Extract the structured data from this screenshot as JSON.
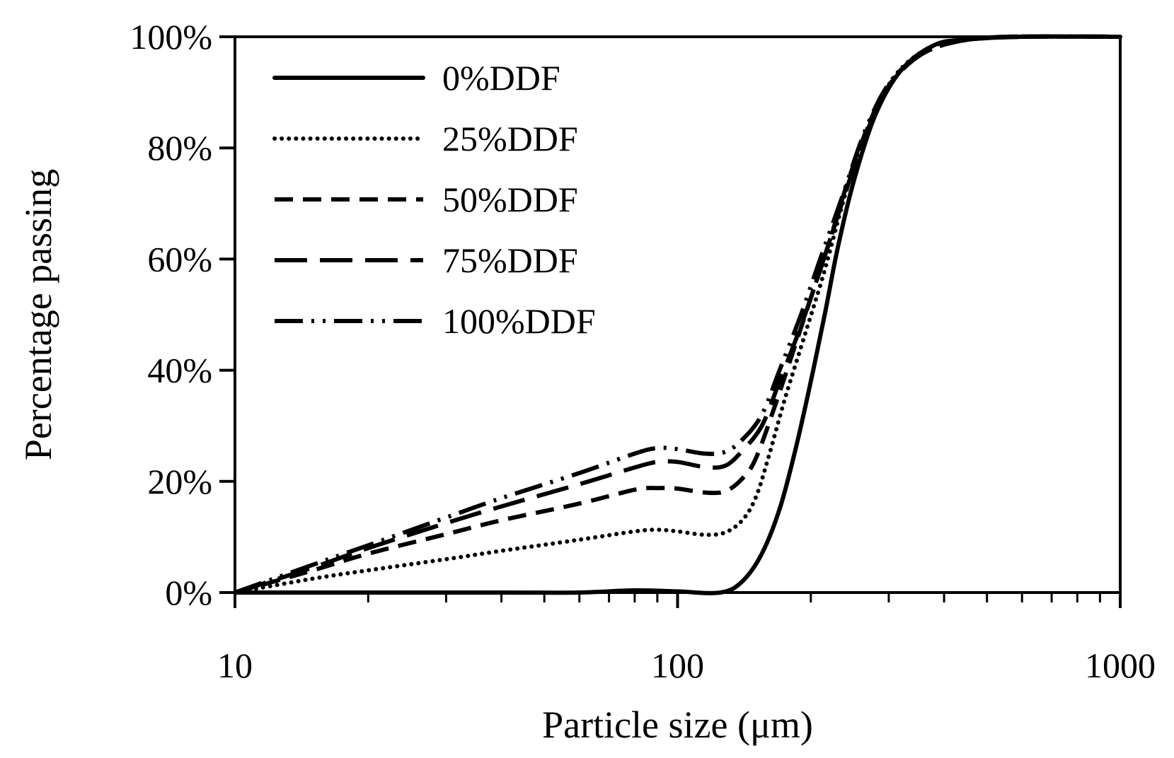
{
  "chart_data": {
    "type": "line",
    "title": "",
    "xlabel": "Particle size (μm)",
    "ylabel": "Percentage passing",
    "xscale": "log",
    "xlim": [
      10,
      1000
    ],
    "ylim": [
      0,
      100
    ],
    "x_ticks": [
      10,
      100,
      1000
    ],
    "x_tick_labels": [
      "10",
      "100",
      "1000"
    ],
    "y_ticks": [
      0,
      20,
      40,
      60,
      80,
      100
    ],
    "y_tick_labels": [
      "0%",
      "20%",
      "40%",
      "60%",
      "80%",
      "100%"
    ],
    "grid": false,
    "legend_position": "top-left",
    "series": [
      {
        "name": "0%DDF",
        "dash": "solid",
        "points": [
          [
            10,
            0
          ],
          [
            20,
            0
          ],
          [
            40,
            0
          ],
          [
            60,
            0
          ],
          [
            80,
            0.4
          ],
          [
            100,
            0.2
          ],
          [
            125,
            0
          ],
          [
            140,
            2
          ],
          [
            155,
            7
          ],
          [
            170,
            15
          ],
          [
            185,
            26
          ],
          [
            200,
            38
          ],
          [
            215,
            50
          ],
          [
            230,
            62
          ],
          [
            250,
            74
          ],
          [
            280,
            86
          ],
          [
            320,
            94
          ],
          [
            380,
            98.5
          ],
          [
            450,
            99.5
          ],
          [
            600,
            100
          ],
          [
            1000,
            100
          ]
        ]
      },
      {
        "name": "25%DDF",
        "dash": "dotted",
        "points": [
          [
            10,
            0
          ],
          [
            15,
            2.5
          ],
          [
            20,
            4
          ],
          [
            30,
            6
          ],
          [
            40,
            7.5
          ],
          [
            60,
            9.5
          ],
          [
            80,
            11
          ],
          [
            90,
            11.3
          ],
          [
            100,
            11
          ],
          [
            115,
            10.4
          ],
          [
            128,
            10.8
          ],
          [
            140,
            13
          ],
          [
            150,
            17
          ],
          [
            160,
            24
          ],
          [
            175,
            35
          ],
          [
            195,
            47
          ],
          [
            215,
            58
          ],
          [
            240,
            72
          ],
          [
            270,
            84
          ],
          [
            310,
            93
          ],
          [
            370,
            98
          ],
          [
            450,
            99.5
          ],
          [
            600,
            100
          ],
          [
            1000,
            100
          ]
        ]
      },
      {
        "name": "50%DDF",
        "dash": "dashed",
        "points": [
          [
            10,
            0
          ],
          [
            15,
            4
          ],
          [
            20,
            7
          ],
          [
            30,
            10.5
          ],
          [
            40,
            13
          ],
          [
            60,
            16
          ],
          [
            80,
            18.5
          ],
          [
            90,
            18.8
          ],
          [
            100,
            18.7
          ],
          [
            115,
            18
          ],
          [
            128,
            18.2
          ],
          [
            140,
            20.5
          ],
          [
            150,
            24
          ],
          [
            165,
            33
          ],
          [
            180,
            42
          ],
          [
            200,
            53
          ],
          [
            220,
            63
          ],
          [
            245,
            75
          ],
          [
            280,
            87
          ],
          [
            320,
            94
          ],
          [
            380,
            98.5
          ],
          [
            450,
            99.5
          ],
          [
            600,
            100
          ],
          [
            1000,
            100
          ]
        ]
      },
      {
        "name": "75%DDF",
        "dash": "long-dash",
        "points": [
          [
            10,
            0
          ],
          [
            15,
            4.5
          ],
          [
            20,
            8
          ],
          [
            30,
            12.5
          ],
          [
            40,
            15.5
          ],
          [
            60,
            19.5
          ],
          [
            80,
            22.5
          ],
          [
            90,
            23.5
          ],
          [
            100,
            23.5
          ],
          [
            115,
            22.6
          ],
          [
            128,
            22.8
          ],
          [
            140,
            25.5
          ],
          [
            155,
            30
          ],
          [
            170,
            38
          ],
          [
            190,
            48
          ],
          [
            210,
            58
          ],
          [
            235,
            70
          ],
          [
            265,
            82
          ],
          [
            300,
            91
          ],
          [
            350,
            96.5
          ],
          [
            420,
            99
          ],
          [
            550,
            100
          ],
          [
            1000,
            100
          ]
        ]
      },
      {
        "name": "100%DDF",
        "dash": "dash-dot-dot",
        "points": [
          [
            10,
            0
          ],
          [
            15,
            5
          ],
          [
            20,
            8.5
          ],
          [
            30,
            13.5
          ],
          [
            40,
            17
          ],
          [
            60,
            21.5
          ],
          [
            80,
            25
          ],
          [
            90,
            26
          ],
          [
            100,
            25.8
          ],
          [
            115,
            25
          ],
          [
            128,
            25.3
          ],
          [
            140,
            27.5
          ],
          [
            155,
            32
          ],
          [
            170,
            40
          ],
          [
            190,
            50
          ],
          [
            210,
            60
          ],
          [
            235,
            71
          ],
          [
            265,
            83
          ],
          [
            300,
            91.5
          ],
          [
            350,
            96.5
          ],
          [
            420,
            99
          ],
          [
            550,
            100
          ],
          [
            1000,
            100
          ]
        ]
      }
    ]
  }
}
